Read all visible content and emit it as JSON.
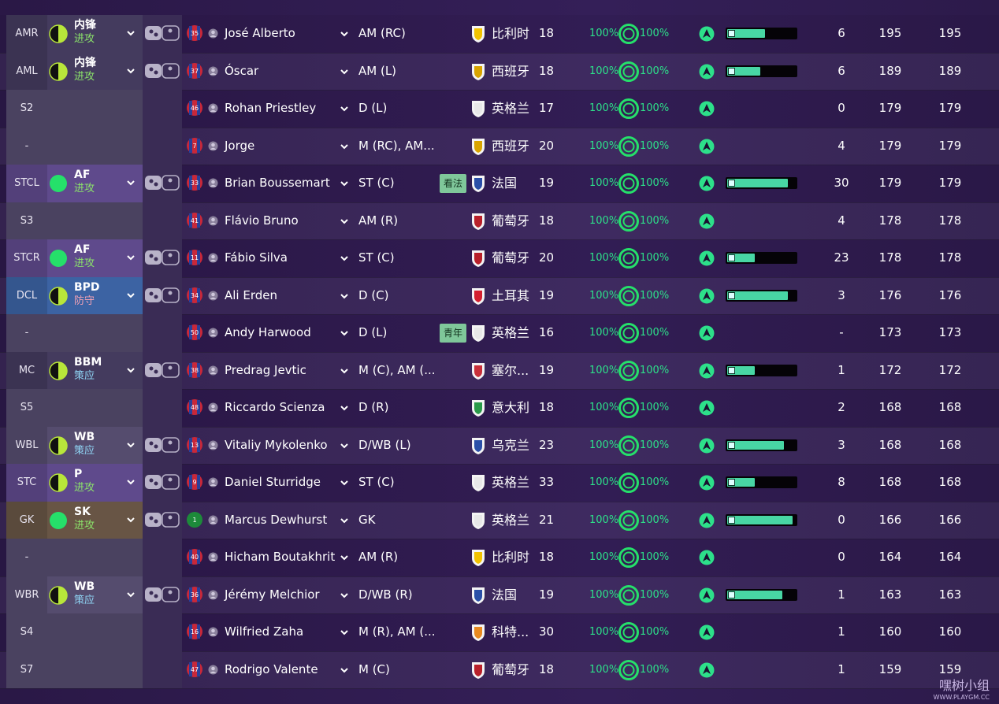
{
  "rows": [
    {
      "pos": "AMR",
      "pos_color": "#3b3352",
      "role": "内锋",
      "duty": "进攻",
      "duty_color": "#8be36a",
      "duty_icon": "half",
      "shirt": "35",
      "name": "José Alberto",
      "positions": "AM (RC)",
      "nation": "比利时",
      "flag_color": "#f2c200",
      "age": "18",
      "pct1": "100%",
      "pct2": "100%",
      "bar": 55,
      "apps": "6",
      "v1": "195",
      "v2": "195"
    },
    {
      "pos": "AML",
      "pos_color": "#3b3352",
      "role": "内锋",
      "duty": "进攻",
      "duty_color": "#8be36a",
      "duty_icon": "half",
      "shirt": "37",
      "name": "Óscar",
      "positions": "AM (L)",
      "nation": "西班牙",
      "flag_color": "#d9a400",
      "age": "18",
      "pct1": "100%",
      "pct2": "100%",
      "bar": 48,
      "apps": "6",
      "v1": "189",
      "v2": "189"
    },
    {
      "pos": "S2",
      "pos_color": "#4a4260",
      "shirt": "46",
      "name": "Rohan Priestley",
      "positions": "D (L)",
      "nation": "英格兰",
      "flag_color": "#e8e8e8",
      "age": "17",
      "pct1": "100%",
      "pct2": "100%",
      "apps": "0",
      "v1": "179",
      "v2": "179"
    },
    {
      "pos": "-",
      "pos_color": "#4a4260",
      "shirt": "7",
      "name": "Jorge",
      "positions": "M (RC), AM...",
      "nation": "西班牙",
      "flag_color": "#d9a400",
      "age": "20",
      "pct1": "100%",
      "pct2": "100%",
      "apps": "4",
      "v1": "179",
      "v2": "179"
    },
    {
      "pos": "STCL",
      "pos_color": "#53407a",
      "role": "AF",
      "duty": "进攻",
      "duty_color": "#8be36a",
      "duty_icon": "full",
      "shirt": "33",
      "name": "Brian Boussemart",
      "positions": "ST (C)",
      "tag": "看法",
      "nation": "法国",
      "flag_color": "#2a4fa8",
      "age": "19",
      "pct1": "100%",
      "pct2": "100%",
      "bar": 88,
      "apps": "30",
      "v1": "179",
      "v2": "179"
    },
    {
      "pos": "S3",
      "pos_color": "#4a4260",
      "shirt": "41",
      "name": "Flávio Bruno",
      "positions": "AM (R)",
      "nation": "葡萄牙",
      "flag_color": "#b8202a",
      "age": "18",
      "pct1": "100%",
      "pct2": "100%",
      "apps": "4",
      "v1": "178",
      "v2": "178"
    },
    {
      "pos": "STCR",
      "pos_color": "#53407a",
      "role": "AF",
      "duty": "进攻",
      "duty_color": "#8be36a",
      "duty_icon": "full",
      "shirt": "11",
      "name": "Fábio Silva",
      "positions": "ST (C)",
      "nation": "葡萄牙",
      "flag_color": "#b8202a",
      "age": "20",
      "pct1": "100%",
      "pct2": "100%",
      "bar": 40,
      "apps": "23",
      "v1": "178",
      "v2": "178"
    },
    {
      "pos": "DCL",
      "pos_color": "#34568e",
      "role": "BPD",
      "duty": "防守",
      "duty_color": "#f0a0b4",
      "duty_icon": "half",
      "shirt": "34",
      "name": "Ali Erden",
      "positions": "D (C)",
      "nation": "土耳其",
      "flag_color": "#d42030",
      "age": "19",
      "pct1": "100%",
      "pct2": "100%",
      "bar": 88,
      "apps": "3",
      "v1": "176",
      "v2": "176"
    },
    {
      "pos": "-",
      "pos_color": "#4a4260",
      "shirt": "50",
      "name": "Andy Harwood",
      "positions": "D (L)",
      "tag": "青年",
      "nation": "英格兰",
      "flag_color": "#e8e8e8",
      "age": "16",
      "pct1": "100%",
      "pct2": "100%",
      "apps": "-",
      "v1": "173",
      "v2": "173"
    },
    {
      "pos": "MC",
      "pos_color": "#3b3352",
      "role": "BBM",
      "duty": "策应",
      "duty_color": "#8fd4f4",
      "duty_icon": "half",
      "shirt": "38",
      "name": "Predrag Jevtic",
      "positions": "M (C), AM (...",
      "nation": "塞尔...",
      "flag_color": "#c8303a",
      "age": "19",
      "pct1": "100%",
      "pct2": "100%",
      "bar": 40,
      "apps": "1",
      "v1": "172",
      "v2": "172"
    },
    {
      "pos": "S5",
      "pos_color": "#4a4260",
      "shirt": "48",
      "name": "Riccardo Scienza",
      "positions": "D (R)",
      "nation": "意大利",
      "flag_color": "#2a9a4a",
      "age": "18",
      "pct1": "100%",
      "pct2": "100%",
      "apps": "2",
      "v1": "168",
      "v2": "168"
    },
    {
      "pos": "WBL",
      "pos_color": "#4a4260",
      "role": "WB",
      "duty": "策应",
      "duty_color": "#8fd4f4",
      "duty_icon": "half",
      "shirt": "13",
      "name": "Vitaliy Mykolenko",
      "positions": "D/WB (L)",
      "nation": "乌克兰",
      "flag_color": "#2a4fa8",
      "age": "23",
      "pct1": "100%",
      "pct2": "100%",
      "bar": 83,
      "apps": "3",
      "v1": "168",
      "v2": "168"
    },
    {
      "pos": "STC",
      "pos_color": "#53407a",
      "role": "P",
      "duty": "进攻",
      "duty_color": "#8be36a",
      "duty_icon": "half",
      "shirt": "9",
      "name": "Daniel Sturridge",
      "positions": "ST (C)",
      "nation": "英格兰",
      "flag_color": "#e8e8e8",
      "age": "33",
      "pct1": "100%",
      "pct2": "100%",
      "bar": 40,
      "apps": "8",
      "v1": "168",
      "v2": "168"
    },
    {
      "pos": "GK",
      "pos_color": "#5a4a3c",
      "role": "SK",
      "duty": "进攻",
      "duty_color": "#8be36a",
      "duty_icon": "full",
      "shirt": "1",
      "name": "Marcus Dewhurst",
      "positions": "GK",
      "nation": "英格兰",
      "flag_color": "#e8e8e8",
      "age": "21",
      "pct1": "100%",
      "pct2": "100%",
      "bar": 95,
      "apps": "0",
      "v1": "166",
      "v2": "166"
    },
    {
      "pos": "-",
      "pos_color": "#4a4260",
      "shirt": "40",
      "name": "Hicham Boutakhrit",
      "positions": "AM (R)",
      "nation": "比利时",
      "flag_color": "#f2c200",
      "age": "18",
      "pct1": "100%",
      "pct2": "100%",
      "apps": "0",
      "v1": "164",
      "v2": "164"
    },
    {
      "pos": "WBR",
      "pos_color": "#4a4260",
      "role": "WB",
      "duty": "策应",
      "duty_color": "#8fd4f4",
      "duty_icon": "half",
      "shirt": "36",
      "name": "Jérémy Melchior",
      "positions": "D/WB (R)",
      "nation": "法国",
      "flag_color": "#2a4fa8",
      "age": "19",
      "pct1": "100%",
      "pct2": "100%",
      "bar": 80,
      "apps": "1",
      "v1": "163",
      "v2": "163"
    },
    {
      "pos": "S4",
      "pos_color": "#4a4260",
      "shirt": "16",
      "name": "Wilfried Zaha",
      "positions": "M (R), AM (...",
      "nation": "科特...",
      "flag_color": "#e88a20",
      "age": "30",
      "pct1": "100%",
      "pct2": "100%",
      "apps": "1",
      "v1": "160",
      "v2": "160"
    },
    {
      "pos": "S7",
      "pos_color": "#4a4260",
      "shirt": "47",
      "name": "Rodrigo Valente",
      "positions": "M (C)",
      "nation": "葡萄牙",
      "flag_color": "#b8202a",
      "age": "18",
      "pct1": "100%",
      "pct2": "100%",
      "apps": "1",
      "v1": "159",
      "v2": "159"
    }
  ],
  "watermark": "嘿树小组",
  "watermark_url": "WWW.PLAYGM.CC"
}
